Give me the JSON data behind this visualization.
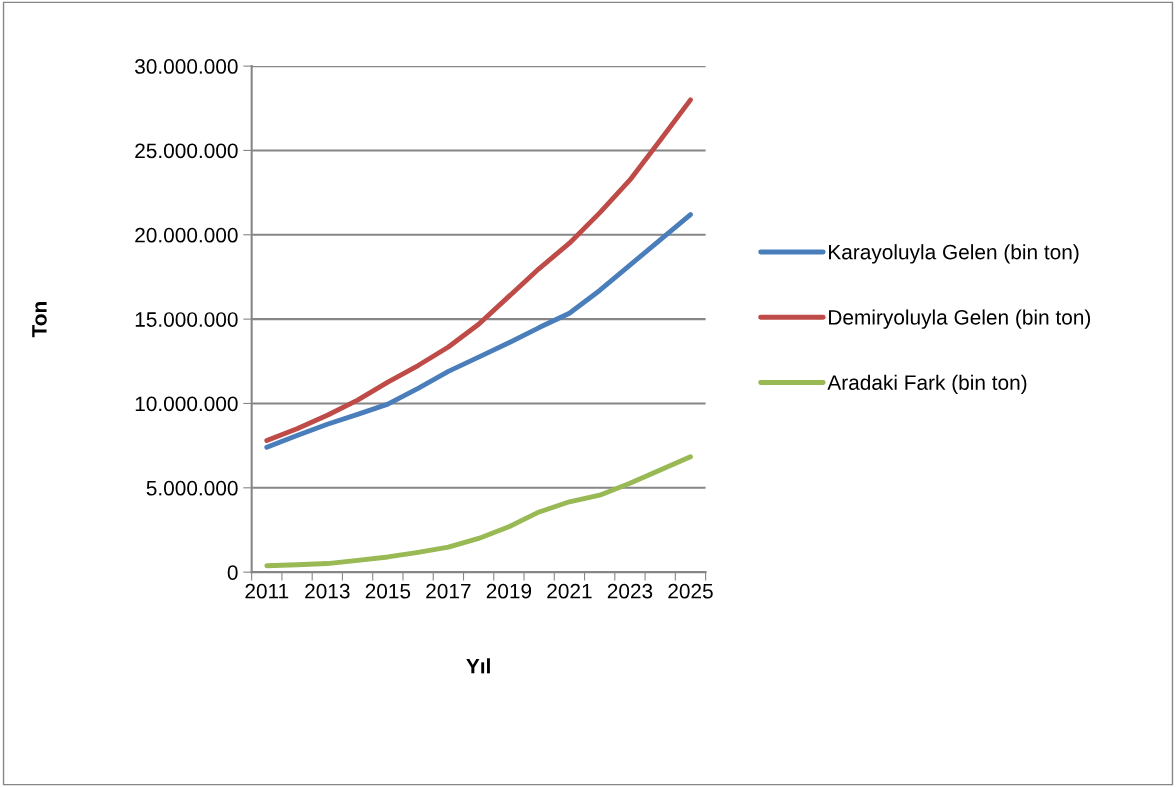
{
  "chart_data": {
    "type": "line",
    "xlabel": "Yıl",
    "ylabel": "Ton",
    "categories": [
      "2011",
      null,
      "2013",
      null,
      "2015",
      null,
      "2017",
      null,
      "2019",
      null,
      "2021",
      null,
      "2023",
      null,
      "2025"
    ],
    "series": [
      {
        "name": "Karayoluyla Gelen (bin ton)",
        "color": "#4a7ebb",
        "values": [
          7400000,
          8100000,
          8770000,
          9350000,
          9960000,
          10900000,
          11900000,
          12750000,
          13600000,
          14500000,
          15350000,
          16700000,
          18200000,
          19700000,
          21200000
        ]
      },
      {
        "name": "Demiryoluyla Gelen (bin ton)",
        "color": "#be4b48",
        "values": [
          7800000,
          8500000,
          9300000,
          10200000,
          11260000,
          12250000,
          13350000,
          14700000,
          16350000,
          18000000,
          19500000,
          21300000,
          23250000,
          25600000,
          28000000
        ]
      },
      {
        "name": "Aradaki Fark (bin ton)",
        "color": "#98b954",
        "values": [
          380000,
          440000,
          510000,
          700000,
          900000,
          1170000,
          1480000,
          2000000,
          2690000,
          3570000,
          4170000,
          4560000,
          5270000,
          6050000,
          6840000
        ]
      }
    ],
    "ylim": [
      0,
      30000000
    ],
    "yticks": [
      {
        "value": 0,
        "label": "0"
      },
      {
        "value": 5000000,
        "label": "5.000.000"
      },
      {
        "value": 10000000,
        "label": "10.000.000"
      },
      {
        "value": 15000000,
        "label": "15.000.000"
      },
      {
        "value": 20000000,
        "label": "20.000.000"
      },
      {
        "value": 25000000,
        "label": "25.000.000"
      },
      {
        "value": 30000000,
        "label": "30.000.000"
      }
    ],
    "grid": "y",
    "legend": "right",
    "marker": "none",
    "line_style": "solid"
  }
}
